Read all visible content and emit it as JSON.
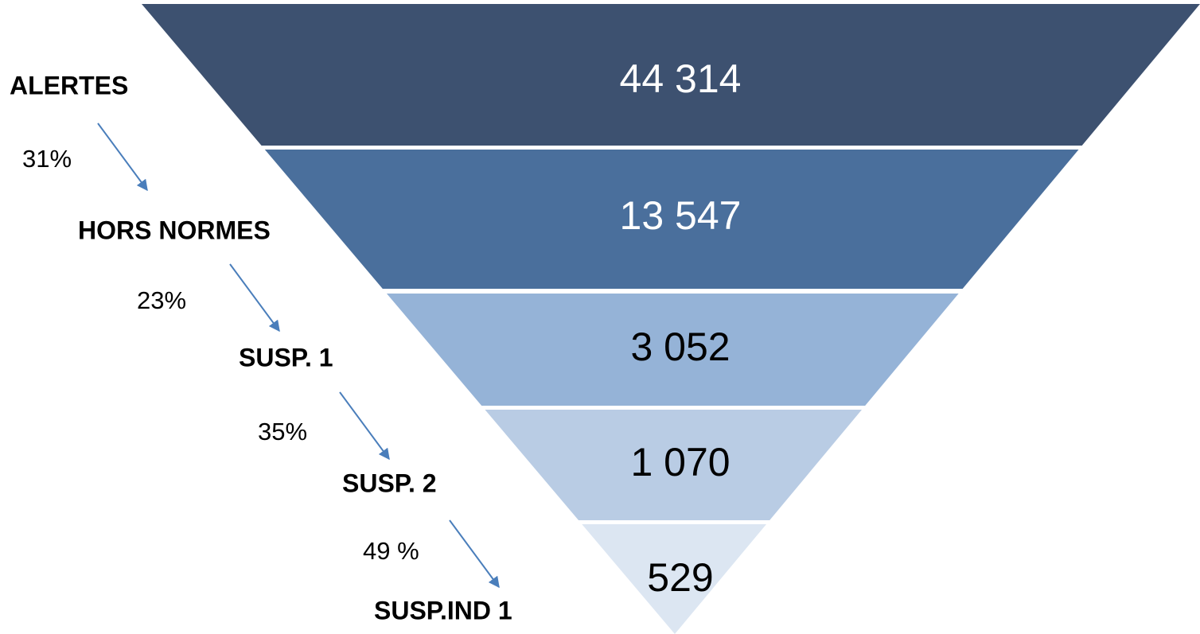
{
  "chart_data": {
    "type": "funnel",
    "categories": [
      "ALERTES",
      "HORS NORMES",
      "SUSP. 1",
      "SUSP. 2",
      "SUSP.IND 1"
    ],
    "values": [
      44314,
      13547,
      3052,
      1070,
      529
    ],
    "value_labels": [
      "44 314",
      "13 547",
      "3 052",
      "1 070",
      "529"
    ],
    "colors": [
      "#3d5170",
      "#4a6f9c",
      "#95b3d7",
      "#b9cce4",
      "#dce6f2"
    ],
    "label_colors": [
      "#ffffff",
      "#ffffff",
      "#000000",
      "#000000",
      "#000000"
    ],
    "conversions": {
      "values": [
        31,
        23,
        35,
        49
      ],
      "value_labels": [
        "31%",
        "23%",
        "35%",
        "49 %"
      ],
      "color": "#4a7ebb"
    }
  }
}
